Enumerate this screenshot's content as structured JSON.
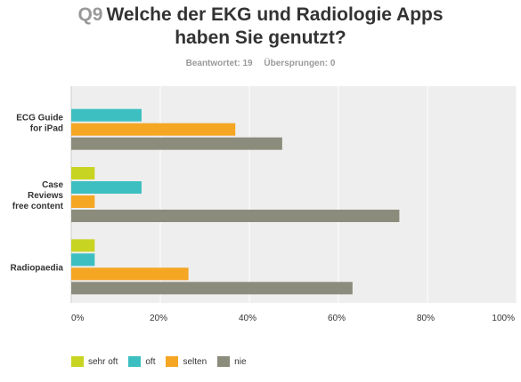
{
  "header": {
    "question_number": "Q9",
    "title_line1": "Welche der EKG und Radiologie Apps",
    "title_line2": "haben Sie genutzt?",
    "answered": "Beantwortet: 19",
    "skipped": "Übersprungen: 0"
  },
  "chart_data": {
    "type": "bar",
    "orientation": "horizontal",
    "categories": [
      [
        "ECG Guide",
        "for iPad"
      ],
      [
        "Case",
        "Reviews",
        "free content"
      ],
      [
        "Radiopaedia"
      ]
    ],
    "series": [
      {
        "name": "sehr oft",
        "color": "#c8d422",
        "values": [
          0,
          5.26,
          5.26
        ]
      },
      {
        "name": "oft",
        "color": "#3dbfc1",
        "values": [
          15.79,
          15.79,
          5.26
        ]
      },
      {
        "name": "selten",
        "color": "#f5a623",
        "values": [
          36.84,
          5.26,
          26.32
        ]
      },
      {
        "name": "nie",
        "color": "#8c8c7c",
        "values": [
          47.37,
          73.68,
          63.16
        ]
      }
    ],
    "xlim": [
      0,
      100
    ],
    "x_ticks": [
      "0%",
      "20%",
      "40%",
      "60%",
      "80%",
      "100%"
    ],
    "grid": true,
    "legend_position": "bottom-left"
  }
}
